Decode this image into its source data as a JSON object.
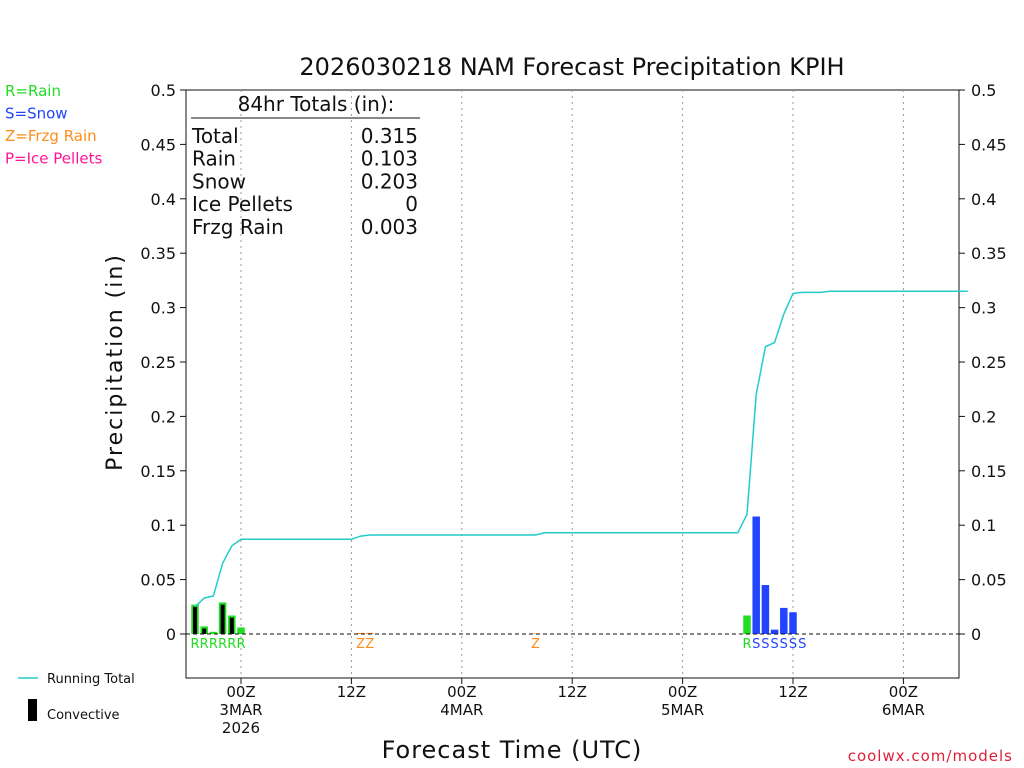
{
  "chart_data": {
    "type": "bar",
    "title": "2026030218 NAM Forecast Precipitation KPIH",
    "xlabel": "Forecast Time (UTC)",
    "ylabel": "Precipitation (in)",
    "ylim": [
      0,
      0.5
    ],
    "y_ticks": [
      "0",
      "0.05",
      "0.1",
      "0.15",
      "0.2",
      "0.25",
      "0.3",
      "0.35",
      "0.4",
      "0.45",
      "0.5"
    ],
    "x_range_hours": [
      -5,
      79
    ],
    "x_ticks": [
      {
        "hour": 0,
        "lines": [
          "00Z",
          "3MAR",
          "2026"
        ]
      },
      {
        "hour": 12,
        "lines": [
          "12Z"
        ]
      },
      {
        "hour": 24,
        "lines": [
          "00Z",
          "4MAR"
        ]
      },
      {
        "hour": 36,
        "lines": [
          "12Z"
        ]
      },
      {
        "hour": 48,
        "lines": [
          "00Z",
          "5MAR"
        ]
      },
      {
        "hour": 60,
        "lines": [
          "12Z"
        ]
      },
      {
        "hour": 72,
        "lines": [
          "00Z",
          "6MAR"
        ]
      }
    ],
    "grid": "vertical dotted at tick hours",
    "totals_box": {
      "heading": "84hr Totals (in):",
      "rows": [
        {
          "label": "Total",
          "value": "0.315"
        },
        {
          "label": "Rain",
          "value": "0.103"
        },
        {
          "label": "Snow",
          "value": "0.203"
        },
        {
          "label": "Ice Pellets",
          "value": "0"
        },
        {
          "label": "Frzg Rain",
          "value": "0.003"
        }
      ]
    },
    "type_legend": [
      {
        "text": "R=Rain",
        "color": "#22dd22"
      },
      {
        "text": "S=Snow",
        "color": "#2244ff"
      },
      {
        "text": "Z=Frzg Rain",
        "color": "#ff8c1a"
      },
      {
        "text": "P=Ice Pellets",
        "color": "#ff1493"
      }
    ],
    "series_legend": [
      {
        "text": "Running Total",
        "color": "#22cccc",
        "kind": "line"
      },
      {
        "text": "Convective",
        "color": "#000000",
        "kind": "bar"
      }
    ],
    "bars": [
      {
        "hour": -5,
        "total": 0.027,
        "convective": 0.025,
        "type": "R"
      },
      {
        "hour": -4,
        "total": 0.007,
        "convective": 0.005,
        "type": "R"
      },
      {
        "hour": -3,
        "total": 0.002,
        "convective": 0.0,
        "type": "R"
      },
      {
        "hour": -2,
        "total": 0.029,
        "convective": 0.027,
        "type": "R"
      },
      {
        "hour": -1,
        "total": 0.017,
        "convective": 0.015,
        "type": "R"
      },
      {
        "hour": 0,
        "total": 0.006,
        "convective": 0.0,
        "type": "R"
      },
      {
        "hour": 13,
        "total": 0.001,
        "convective": 0.0,
        "type": "Z"
      },
      {
        "hour": 14,
        "total": 0.001,
        "convective": 0.0,
        "type": "Z"
      },
      {
        "hour": 32,
        "total": 0.0005,
        "convective": 0.0,
        "type": "Z"
      },
      {
        "hour": 55,
        "total": 0.017,
        "convective": 0.0,
        "type": "R"
      },
      {
        "hour": 56,
        "total": 0.108,
        "convective": 0.0,
        "type": "S"
      },
      {
        "hour": 57,
        "total": 0.045,
        "convective": 0.0,
        "type": "S"
      },
      {
        "hour": 58,
        "total": 0.004,
        "convective": 0.0,
        "type": "S"
      },
      {
        "hour": 59,
        "total": 0.024,
        "convective": 0.0,
        "type": "S"
      },
      {
        "hour": 60,
        "total": 0.02,
        "convective": 0.0,
        "type": "S"
      },
      {
        "hour": 61,
        "total": 0.0,
        "convective": 0.0,
        "type": "S"
      }
    ],
    "running_total": [
      [
        -5,
        0.025
      ],
      [
        -4,
        0.033
      ],
      [
        -3,
        0.035
      ],
      [
        -2,
        0.065
      ],
      [
        -1,
        0.081
      ],
      [
        0,
        0.087
      ],
      [
        12,
        0.087
      ],
      [
        13,
        0.09
      ],
      [
        14,
        0.091
      ],
      [
        32,
        0.091
      ],
      [
        33,
        0.093
      ],
      [
        54,
        0.093
      ],
      [
        55,
        0.11
      ],
      [
        56,
        0.22
      ],
      [
        57,
        0.264
      ],
      [
        58,
        0.268
      ],
      [
        59,
        0.294
      ],
      [
        60,
        0.313
      ],
      [
        61,
        0.314
      ],
      [
        63,
        0.314
      ],
      [
        64,
        0.315
      ],
      [
        79,
        0.315
      ]
    ]
  },
  "credit": "coolwx.com/models"
}
